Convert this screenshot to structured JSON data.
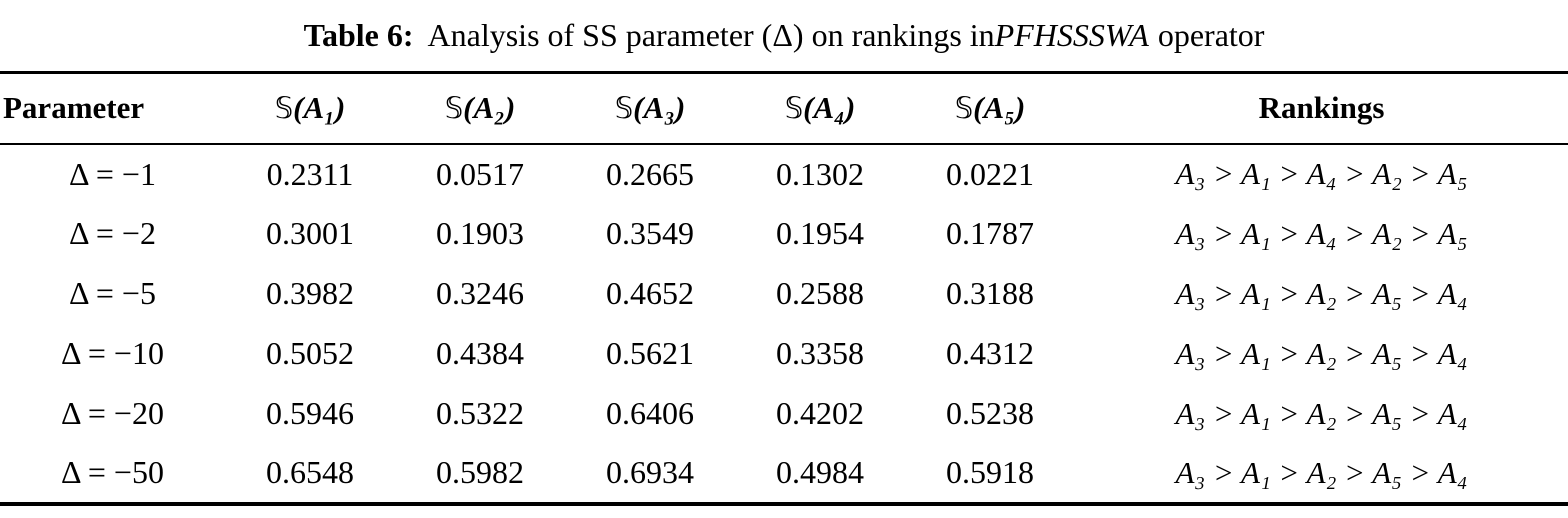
{
  "title": {
    "label": "Table 6:",
    "text": "Analysis of SS parameter (Δ) on rankings in",
    "operator": "PFHSSSWA",
    "suffix": "operator"
  },
  "table": {
    "columns": {
      "parameter": "Parameter",
      "rankings": "Rankings"
    },
    "score_headers": [
      {
        "s": "𝕊",
        "arg": "(A₁)"
      },
      {
        "s": "𝕊",
        "arg": "(A₂)"
      },
      {
        "s": "𝕊",
        "arg": "(A₃)"
      },
      {
        "s": "𝕊",
        "arg": "(A₄)"
      },
      {
        "s": "𝕊",
        "arg": "(A₅)"
      }
    ],
    "rows": [
      {
        "parameter": "Δ = −1",
        "scores": [
          "0.2311",
          "0.0517",
          "0.2665",
          "0.1302",
          "0.0221"
        ],
        "ranking": "A₃ > A₁ > A₄ > A₂ > A₅"
      },
      {
        "parameter": "Δ = −2",
        "scores": [
          "0.3001",
          "0.1903",
          "0.3549",
          "0.1954",
          "0.1787"
        ],
        "ranking": "A₃ > A₁ > A₄ > A₂ > A₅"
      },
      {
        "parameter": "Δ = −5",
        "scores": [
          "0.3982",
          "0.3246",
          "0.4652",
          "0.2588",
          "0.3188"
        ],
        "ranking": "A₃ > A₁ > A₂ > A₅ > A₄"
      },
      {
        "parameter": "Δ = −10",
        "scores": [
          "0.5052",
          "0.4384",
          "0.5621",
          "0.3358",
          "0.4312"
        ],
        "ranking": "A₃ > A₁ > A₂ > A₅ > A₄"
      },
      {
        "parameter": "Δ = −20",
        "scores": [
          "0.5946",
          "0.5322",
          "0.6406",
          "0.4202",
          "0.5238"
        ],
        "ranking": "A₃ > A₁ > A₂ > A₅ > A₄"
      },
      {
        "parameter": "Δ = −50",
        "scores": [
          "0.6548",
          "0.5982",
          "0.6934",
          "0.4984",
          "0.5918"
        ],
        "ranking": "A₃ > A₁ > A₂ > A₅ > A₄"
      }
    ]
  },
  "colors": {
    "text": "#000000",
    "background": "#ffffff",
    "rule": "#000000"
  }
}
